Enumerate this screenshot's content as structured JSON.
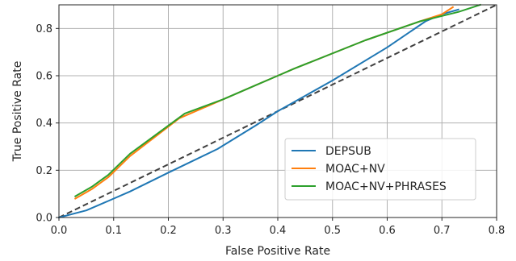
{
  "chart_data": {
    "type": "line",
    "title": "",
    "xlabel": "False Positive Rate",
    "ylabel": "True Positive Rate",
    "xlim": [
      0.0,
      0.8
    ],
    "ylim": [
      0.0,
      0.9
    ],
    "xticks": [
      0.0,
      0.1,
      0.2,
      0.3,
      0.4,
      0.5,
      0.6,
      0.7,
      0.8
    ],
    "yticks": [
      0.0,
      0.2,
      0.4,
      0.6,
      0.8
    ],
    "xtick_labels": [
      "0.0",
      "0.1",
      "0.2",
      "0.3",
      "0.4",
      "0.5",
      "0.6",
      "0.7",
      "0.8"
    ],
    "ytick_labels": [
      "0.0",
      "0.2",
      "0.4",
      "0.6",
      "0.8"
    ],
    "grid": true,
    "legend_position": "bottom-right",
    "series": [
      {
        "name": "DEPSUB",
        "color": "#1f77b4",
        "x": [
          0.0,
          0.05,
          0.09,
          0.13,
          0.2,
          0.29,
          0.36,
          0.4,
          0.5,
          0.6,
          0.67,
          0.7,
          0.73
        ],
        "y": [
          0.0,
          0.03,
          0.07,
          0.11,
          0.19,
          0.29,
          0.39,
          0.45,
          0.58,
          0.72,
          0.83,
          0.86,
          0.88
        ]
      },
      {
        "name": "MOAC+NV",
        "color": "#ff7f0e",
        "x": [
          0.03,
          0.06,
          0.09,
          0.13,
          0.22,
          0.29,
          0.36,
          0.4,
          0.43,
          0.56,
          0.66,
          0.7,
          0.72
        ],
        "y": [
          0.08,
          0.12,
          0.17,
          0.26,
          0.42,
          0.49,
          0.56,
          0.6,
          0.63,
          0.75,
          0.83,
          0.86,
          0.89
        ]
      },
      {
        "name": "MOAC+NV+PHRASES",
        "color": "#2ca02c",
        "x": [
          0.03,
          0.06,
          0.09,
          0.13,
          0.23,
          0.3,
          0.36,
          0.4,
          0.43,
          0.56,
          0.66,
          0.73,
          0.77
        ],
        "y": [
          0.09,
          0.13,
          0.18,
          0.27,
          0.44,
          0.5,
          0.56,
          0.6,
          0.63,
          0.75,
          0.83,
          0.87,
          0.9
        ]
      }
    ],
    "reference_line": {
      "style": "dashed",
      "color": "#404040",
      "x": [
        0.0,
        0.8
      ],
      "y": [
        0.0,
        0.9
      ]
    }
  }
}
